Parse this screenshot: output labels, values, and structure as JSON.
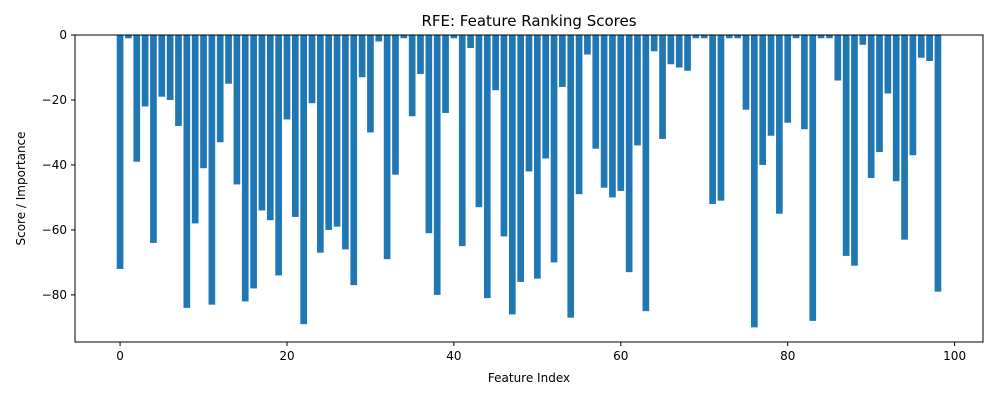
{
  "chart_data": {
    "type": "bar",
    "title": "RFE: Feature Ranking Scores",
    "xlabel": "Feature Index",
    "ylabel": "Score / Importance",
    "xlim": [
      -5.4,
      103.4
    ],
    "ylim": [
      -94.5,
      0
    ],
    "xticks": [
      0,
      20,
      40,
      60,
      80,
      100
    ],
    "yticks": [
      0,
      -20,
      -40,
      -60,
      -80
    ],
    "grid": false,
    "bar_color": "#1f77b4",
    "x": [
      0,
      1,
      2,
      3,
      4,
      5,
      6,
      7,
      8,
      9,
      10,
      11,
      12,
      13,
      14,
      15,
      16,
      17,
      18,
      19,
      20,
      21,
      22,
      23,
      24,
      25,
      26,
      27,
      28,
      29,
      30,
      31,
      32,
      33,
      34,
      35,
      36,
      37,
      38,
      39,
      40,
      41,
      42,
      43,
      44,
      45,
      46,
      47,
      48,
      49,
      50,
      51,
      52,
      53,
      54,
      55,
      56,
      57,
      58,
      59,
      60,
      61,
      62,
      63,
      64,
      65,
      66,
      67,
      68,
      69,
      70,
      71,
      72,
      73,
      74,
      75,
      76,
      77,
      78,
      79,
      80,
      81,
      82,
      83,
      84,
      85,
      86,
      87,
      88,
      89,
      90,
      91,
      92,
      93,
      94,
      95,
      96,
      97,
      98
    ],
    "values": [
      -72,
      -1,
      -39,
      -22,
      -64,
      -19,
      -20,
      -28,
      -84,
      -58,
      -41,
      -83,
      -33,
      -15,
      -46,
      -82,
      -78,
      -54,
      -57,
      -74,
      -26,
      -56,
      -89,
      -21,
      -67,
      -60,
      -59,
      -66,
      -77,
      -13,
      -30,
      -2,
      -69,
      -43,
      -1,
      -25,
      -12,
      -61,
      -80,
      -24,
      -1,
      -65,
      -4,
      -53,
      -81,
      -17,
      -62,
      -86,
      -76,
      -42,
      -75,
      -38,
      -70,
      -16,
      -87,
      -49,
      -6,
      -35,
      -47,
      -50,
      -48,
      -73,
      -34,
      -85,
      -5,
      -32,
      -9,
      -10,
      -11,
      -1,
      -1,
      -52,
      -51,
      -1,
      -1,
      -23,
      -90,
      -40,
      -31,
      -55,
      -27,
      -1,
      -29,
      -88,
      -1,
      -1,
      -14,
      -68,
      -71,
      -3,
      -44,
      -36,
      -18,
      -45,
      -63,
      -37,
      -7,
      -8,
      -79
    ]
  }
}
